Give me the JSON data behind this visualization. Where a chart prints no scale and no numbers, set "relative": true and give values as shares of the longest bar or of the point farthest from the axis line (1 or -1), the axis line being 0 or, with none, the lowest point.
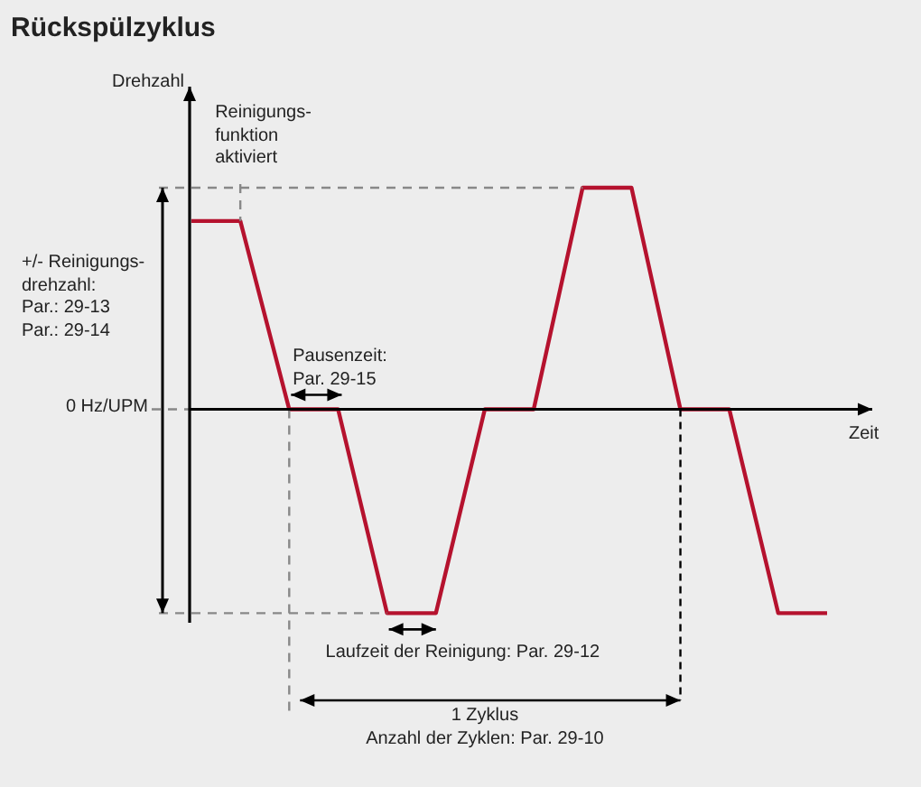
{
  "chart_data": {
    "type": "line",
    "title": "Rückspülzyklus",
    "xlabel": "Zeit",
    "relative": true,
    "categories": [
      null,
      null,
      null,
      null,
      null,
      null,
      null,
      null,
      null,
      null,
      null,
      null,
      null,
      null
    ],
    "series": [
      {
        "color": "#b5122e",
        "values": [
          0.85,
          0.85,
          0,
          0,
          -0.92,
          -0.92,
          0,
          0,
          1,
          1,
          0,
          0,
          -0.92,
          -0.92
        ]
      }
    ],
    "annotations": [
      "Reinigungs-\nfunktion\naktiviert",
      "+/- Reinigungs-\ndrehzahl:\nPar.: 29-13\nPar.: 29-14",
      "0 Hz/UPM",
      "Pausenzeit:\nPar. 29-15",
      "Laufzeit der Reinigung: Par. 29-12",
      "1 Zyklus",
      "Anzahl der Zyklen: Par. 29-10",
      "Drehzahl"
    ],
    "marker": "none",
    "legend": false,
    "tick_labels": false
  }
}
